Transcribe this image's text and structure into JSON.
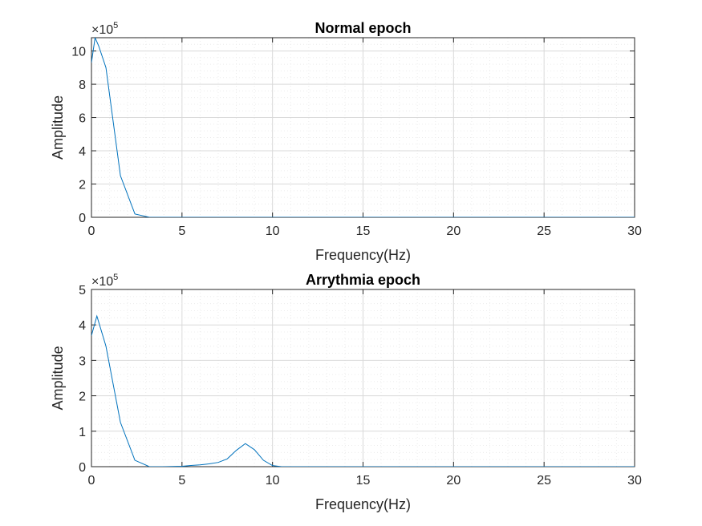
{
  "chart_data": [
    {
      "type": "line",
      "title": "Normal epoch",
      "xlabel": "Frequency(Hz)",
      "ylabel": "Amplitude",
      "xlim": [
        0,
        30
      ],
      "ylim": [
        0,
        1080000
      ],
      "xticks": [
        0,
        5,
        10,
        15,
        20,
        25,
        30
      ],
      "yticks": [
        0,
        200000,
        400000,
        600000,
        800000,
        1000000
      ],
      "ytick_labels": [
        "0",
        "2",
        "4",
        "6",
        "8",
        "10"
      ],
      "exponent_base": "×10",
      "exponent_power": "5",
      "grid": "major-and-minor-dotted",
      "color": "#0072BD",
      "series": [
        {
          "x": [
            0,
            0.2,
            0.4,
            0.8,
            1.6,
            2.4,
            3.2,
            4.0,
            6,
            10,
            15,
            20,
            25,
            30
          ],
          "y": [
            930000,
            1080000,
            1030000,
            900000,
            250000,
            20000,
            0,
            0,
            0,
            0,
            0,
            0,
            0,
            0
          ]
        }
      ]
    },
    {
      "type": "line",
      "title": "Arrythmia epoch",
      "xlabel": "Frequency(Hz)",
      "ylabel": "Amplitude",
      "xlim": [
        0,
        30
      ],
      "ylim": [
        0,
        500000
      ],
      "xticks": [
        0,
        5,
        10,
        15,
        20,
        25,
        30
      ],
      "yticks": [
        0,
        100000,
        200000,
        300000,
        400000,
        500000
      ],
      "ytick_labels": [
        "0",
        "1",
        "2",
        "3",
        "4",
        "5"
      ],
      "exponent_base": "×10",
      "exponent_power": "5",
      "grid": "major-and-minor-dotted",
      "color": "#0072BD",
      "series": [
        {
          "x": [
            0,
            0.3,
            0.8,
            1.6,
            2.4,
            3.2,
            4.0,
            5.0,
            5.5,
            6.0,
            6.5,
            7.0,
            7.5,
            8.0,
            8.5,
            9.0,
            9.5,
            10.0,
            10.5,
            11,
            15,
            20,
            25,
            30
          ],
          "y": [
            370000,
            425000,
            340000,
            125000,
            18000,
            0,
            0,
            1000,
            3500,
            5000,
            8000,
            12000,
            22000,
            46000,
            65000,
            48000,
            18000,
            3000,
            0,
            0,
            0,
            0,
            0,
            0
          ]
        }
      ]
    }
  ]
}
